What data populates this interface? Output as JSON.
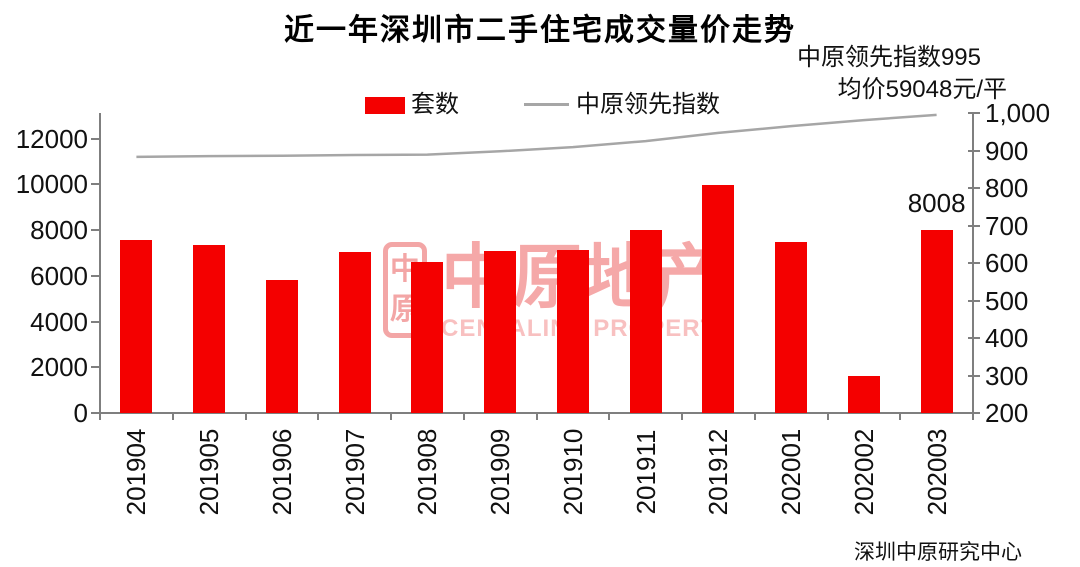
{
  "title": "近一年深圳市二手住宅成交量价走势",
  "annotations": {
    "index_line": "中原领先指数995",
    "price_line": "均价59048元/平"
  },
  "legend": {
    "bars": "套数",
    "line": "中原领先指数"
  },
  "watermark": {
    "seal_top": "中",
    "seal_bottom": "原",
    "cn": "中原地产",
    "en": "CENTALINE PROPERTY"
  },
  "source": "深圳中原研究中心",
  "colors": {
    "bar": "#f40000",
    "line": "#a6a6a6",
    "axis": "#7f7f7f",
    "text": "#111111"
  },
  "chart_data": {
    "type": "combo (bar + line)",
    "title": "近一年深圳市二手住宅成交量价走势",
    "categories": [
      "201904",
      "201905",
      "201906",
      "201907",
      "201908",
      "201909",
      "201910",
      "201911",
      "201912",
      "202001",
      "202002",
      "202003"
    ],
    "series": [
      {
        "name": "套数",
        "type": "bar",
        "axis": "left",
        "values": [
          7550,
          7350,
          5800,
          7050,
          6620,
          7080,
          7120,
          8000,
          9970,
          7490,
          1630,
          8008
        ]
      },
      {
        "name": "中原领先指数",
        "type": "line",
        "axis": "right",
        "values": [
          883,
          885,
          886,
          888,
          889,
          898,
          909,
          925,
          947,
          965,
          981,
          995
        ]
      }
    ],
    "bar_label": {
      "category": "202003",
      "text": "8008"
    },
    "left_axis": {
      "min": 0,
      "max": 12000,
      "step": 2000,
      "plot_top_value": 13120,
      "ticks": [
        "0",
        "2000",
        "4000",
        "6000",
        "8000",
        "10000",
        "12000"
      ]
    },
    "right_axis": {
      "min": 200,
      "max": 1000,
      "step": 100,
      "ticks": [
        "200",
        "300",
        "400",
        "500",
        "600",
        "700",
        "800",
        "900",
        "1,000"
      ]
    },
    "grid": false,
    "legend_position": "top",
    "annotations": [
      "中原领先指数995",
      "均价59048元/平",
      "8008"
    ]
  }
}
